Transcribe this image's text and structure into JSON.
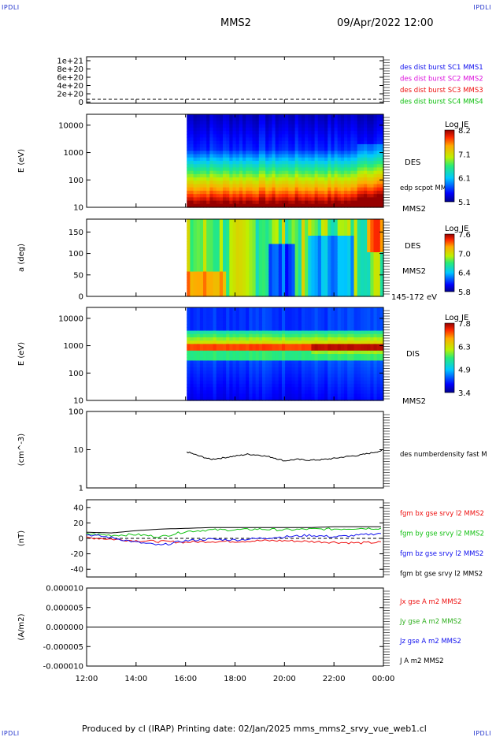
{
  "page": {
    "corner_tl": "IPDLI",
    "corner_tr": "IPDLI",
    "corner_bl": "IPDLI",
    "corner_br": "IPDLI",
    "spacecraft": "MMS2",
    "datetime": "09/Apr/2022 12:00",
    "footer": "Produced by cl (IRAP)   Printing date: 02/Jan/2025   mms_mms2_srvy_vue_web1.cl"
  },
  "time_axis": {
    "ticks": [
      "12:00",
      "14:00",
      "16:00",
      "18:00",
      "20:00",
      "22:00",
      "00:00"
    ],
    "start_hour": 12,
    "end_hour": 24,
    "data_start_hour": 16.05
  },
  "colors": {
    "black": "#000000",
    "blue": "#1010ee",
    "red": "#ee1010",
    "green": "#10c010",
    "magenta": "#dd10dd",
    "olive_green": "#30b020"
  },
  "chart_data": [
    {
      "id": "des_dist_burst",
      "type": "line",
      "ytick_labels": [
        "1e+21",
        "8e+20",
        "6e+20",
        "4e+20",
        "2e+20",
        "0"
      ],
      "ylim": [
        0,
        1e+21
      ],
      "series": [
        {
          "name": "des dist burst SC1 MMS1",
          "color": "#1010ee",
          "values": []
        },
        {
          "name": "des dist burst SC2 MMS2",
          "color": "#dd10dd",
          "values": []
        },
        {
          "name": "des dist burst SC3 MMS3",
          "color": "#ee1010",
          "values": []
        },
        {
          "name": "des dist burst SC4 MMS4",
          "color": "#10c010",
          "values": []
        }
      ]
    },
    {
      "id": "des_energy",
      "type": "heatmap",
      "ylabel": "E (eV)",
      "scale": "log",
      "ylim": [
        10,
        25000
      ],
      "ytick_labels": [
        "10000",
        "1000",
        "100",
        "10"
      ],
      "ytick_values": [
        10000,
        1000,
        100,
        10
      ],
      "side_labels": [
        "DES",
        "edp scpot MMS2",
        "MMS2"
      ],
      "colorbar": {
        "title": "Log JE",
        "labels": [
          "8.2",
          "7.1",
          "6.1",
          "5.1"
        ],
        "range": [
          5.1,
          8.2
        ]
      }
    },
    {
      "id": "des_pitch",
      "type": "heatmap",
      "ylabel": "a (deg)",
      "ylim": [
        0,
        180
      ],
      "ytick_labels": [
        "150",
        "100",
        "50",
        "0"
      ],
      "ytick_values": [
        150,
        100,
        50,
        0
      ],
      "side_labels": [
        "DES",
        "MMS2",
        "145-172 eV"
      ],
      "colorbar": {
        "title": "Log JE",
        "labels": [
          "7.6",
          "7.0",
          "6.4",
          "5.8"
        ],
        "range": [
          5.8,
          7.6
        ]
      }
    },
    {
      "id": "dis_energy",
      "type": "heatmap",
      "ylabel": "E (eV)",
      "scale": "log",
      "ylim": [
        10,
        25000
      ],
      "ytick_labels": [
        "10000",
        "1000",
        "100",
        "10"
      ],
      "ytick_values": [
        10000,
        1000,
        100,
        10
      ],
      "side_labels": [
        "DIS",
        "MMS2"
      ],
      "colorbar": {
        "title": "Log JE",
        "labels": [
          "7.8",
          "6.3",
          "4.9",
          "3.4"
        ],
        "range": [
          3.4,
          7.8
        ]
      }
    },
    {
      "id": "density",
      "type": "line",
      "ylabel": "(cm^-3)",
      "scale": "log",
      "ylim": [
        1,
        100
      ],
      "ytick_labels": [
        "100",
        "10",
        "1"
      ],
      "ytick_values": [
        100,
        10,
        1
      ],
      "series": [
        {
          "name": "des numberdensity fast M",
          "color": "#000000",
          "x": [
            16.05,
            16.5,
            17.0,
            17.5,
            18.0,
            18.5,
            19.0,
            19.5,
            20.0,
            20.5,
            21.0,
            21.5,
            22.0,
            22.5,
            23.0,
            23.5,
            24.0
          ],
          "values": [
            8.8,
            7.0,
            5.6,
            6.1,
            6.8,
            7.6,
            7.2,
            6.3,
            5.1,
            5.6,
            5.3,
            5.5,
            5.9,
            6.6,
            7.1,
            8.2,
            9.6
          ]
        }
      ]
    },
    {
      "id": "fgm",
      "type": "line",
      "ylabel": "(nT)",
      "ylim": [
        -50,
        50
      ],
      "ytick_labels": [
        "40",
        "20",
        "0",
        "-20",
        "-40"
      ],
      "ytick_values": [
        40,
        20,
        0,
        -20,
        -40
      ],
      "series": [
        {
          "name": "fgm bx gse srvy l2 MMS2",
          "color": "#ee1010",
          "x": [
            12,
            13,
            14,
            15,
            16,
            17,
            18,
            19,
            20,
            21,
            22,
            23,
            24
          ],
          "values": [
            1,
            -1,
            -3,
            -4,
            -5,
            -4,
            -4,
            -3,
            -3,
            -4,
            -5,
            -6,
            -5
          ]
        },
        {
          "name": "fgm by gse srvy l2 MMS2",
          "color": "#10c010",
          "x": [
            12,
            13,
            14,
            15,
            16,
            17,
            18,
            19,
            20,
            21,
            22,
            23,
            24
          ],
          "values": [
            6,
            4,
            5,
            2,
            9,
            11,
            11,
            12,
            11,
            12,
            12,
            13,
            13
          ]
        },
        {
          "name": "fgm bz gse srvy l2 MMS2",
          "color": "#1010ee",
          "x": [
            12,
            13,
            14,
            15,
            16,
            17,
            18,
            19,
            20,
            21,
            22,
            23,
            24
          ],
          "values": [
            5,
            1,
            -5,
            -9,
            -3,
            -1,
            -2,
            0,
            2,
            4,
            2,
            4,
            7
          ]
        },
        {
          "name": "fgm bt gse srvy l2 MMS2",
          "color": "#000000",
          "x": [
            12,
            13,
            14,
            15,
            16,
            17,
            18,
            19,
            20,
            21,
            22,
            23,
            24
          ],
          "values": [
            8,
            7,
            10,
            12,
            13,
            14,
            14,
            14,
            14,
            14,
            15,
            15,
            15
          ]
        }
      ]
    },
    {
      "id": "current",
      "type": "line",
      "ylabel": "(A/m2)",
      "ylim": [
        -1e-05,
        1e-05
      ],
      "ytick_labels": [
        "0.000010",
        "0.000005",
        "0.000000",
        "-0.000005",
        "-0.000010"
      ],
      "ytick_values": [
        1e-05,
        5e-06,
        0,
        -5e-06,
        -1e-05
      ],
      "series": [
        {
          "name": "Jx gse A m2 MMS2",
          "color": "#ee1010",
          "x": [
            12,
            24
          ],
          "values": [
            0,
            0
          ]
        },
        {
          "name": "Jy gse A m2 MMS2",
          "color": "#30b020",
          "x": [
            12,
            24
          ],
          "values": [
            0,
            0
          ]
        },
        {
          "name": "Jz gse A m2 MMS2",
          "color": "#1010ee",
          "x": [
            12,
            24
          ],
          "values": [
            0,
            0
          ]
        },
        {
          "name": "J A m2 MMS2",
          "color": "#000000",
          "x": [
            12,
            24
          ],
          "values": [
            0,
            0
          ]
        }
      ]
    }
  ]
}
